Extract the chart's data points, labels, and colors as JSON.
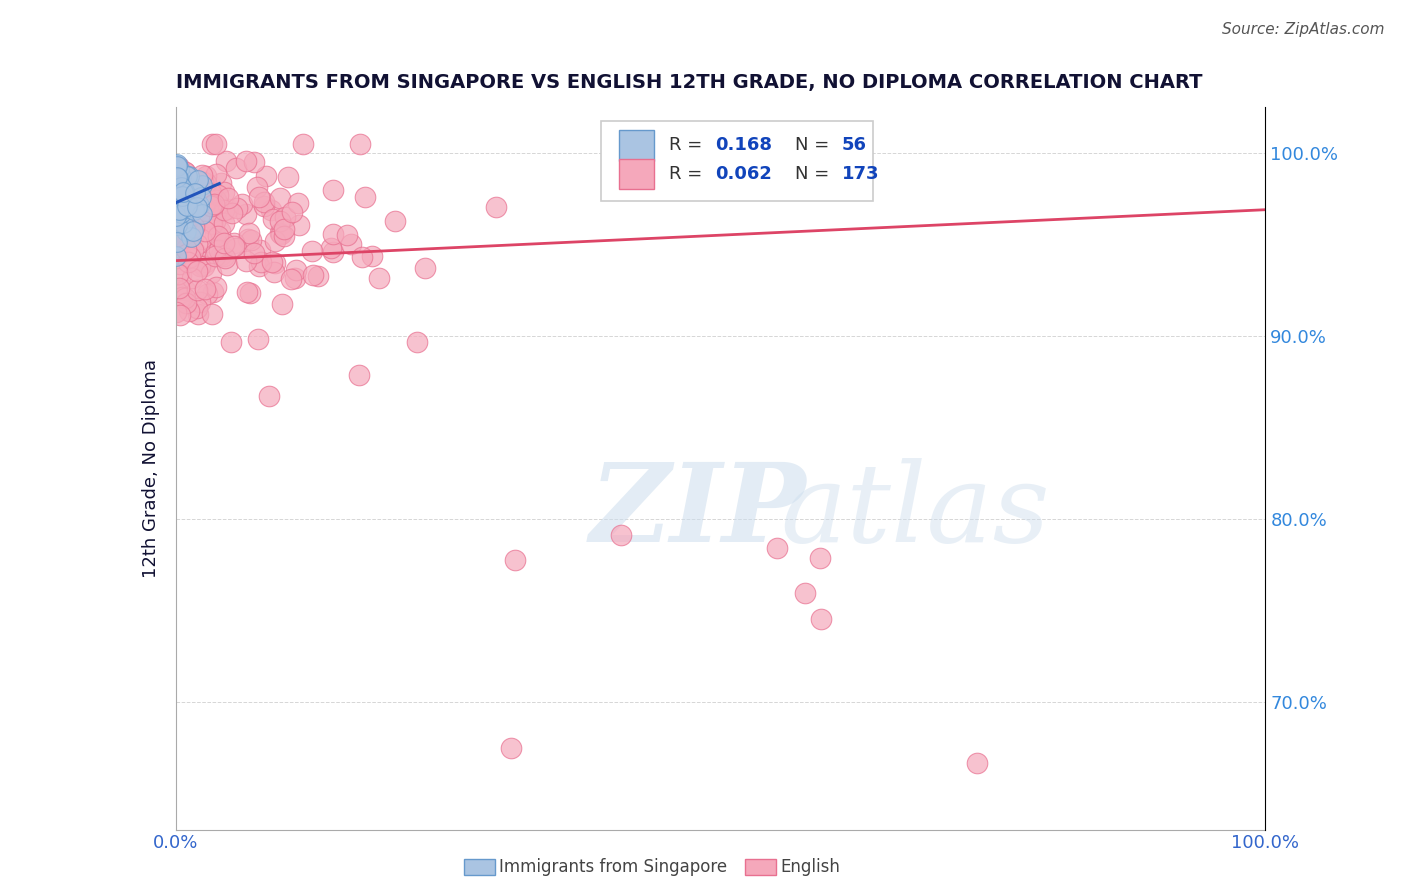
{
  "title": "IMMIGRANTS FROM SINGAPORE VS ENGLISH 12TH GRADE, NO DIPLOMA CORRELATION CHART",
  "source": "Source: ZipAtlas.com",
  "ylabel": "12th Grade, No Diploma",
  "xlim": [
    0.0,
    1.0
  ],
  "ylim": [
    0.63,
    1.025
  ],
  "right_yticks": [
    0.7,
    0.8,
    0.9,
    1.0
  ],
  "right_yticklabels": [
    "70.0%",
    "80.0%",
    "90.0%",
    "100.0%"
  ],
  "blue_R": 0.168,
  "blue_N": 56,
  "pink_R": 0.062,
  "pink_N": 173,
  "blue_color": "#aac4e2",
  "pink_color": "#f5a8bb",
  "blue_edge": "#6699cc",
  "pink_edge": "#e87090",
  "trend_blue": "#2255bb",
  "trend_pink": "#dd4466",
  "watermark_zip": "ZIP",
  "watermark_atlas": "atlas",
  "legend_blue": "Immigrants from Singapore",
  "legend_pink": "English",
  "background": "#ffffff",
  "grid_color": "#bbbbbb",
  "title_color": "#111133",
  "value_color": "#1144bb",
  "right_label_color": "#3388dd",
  "axis_tick_color": "#3366cc"
}
